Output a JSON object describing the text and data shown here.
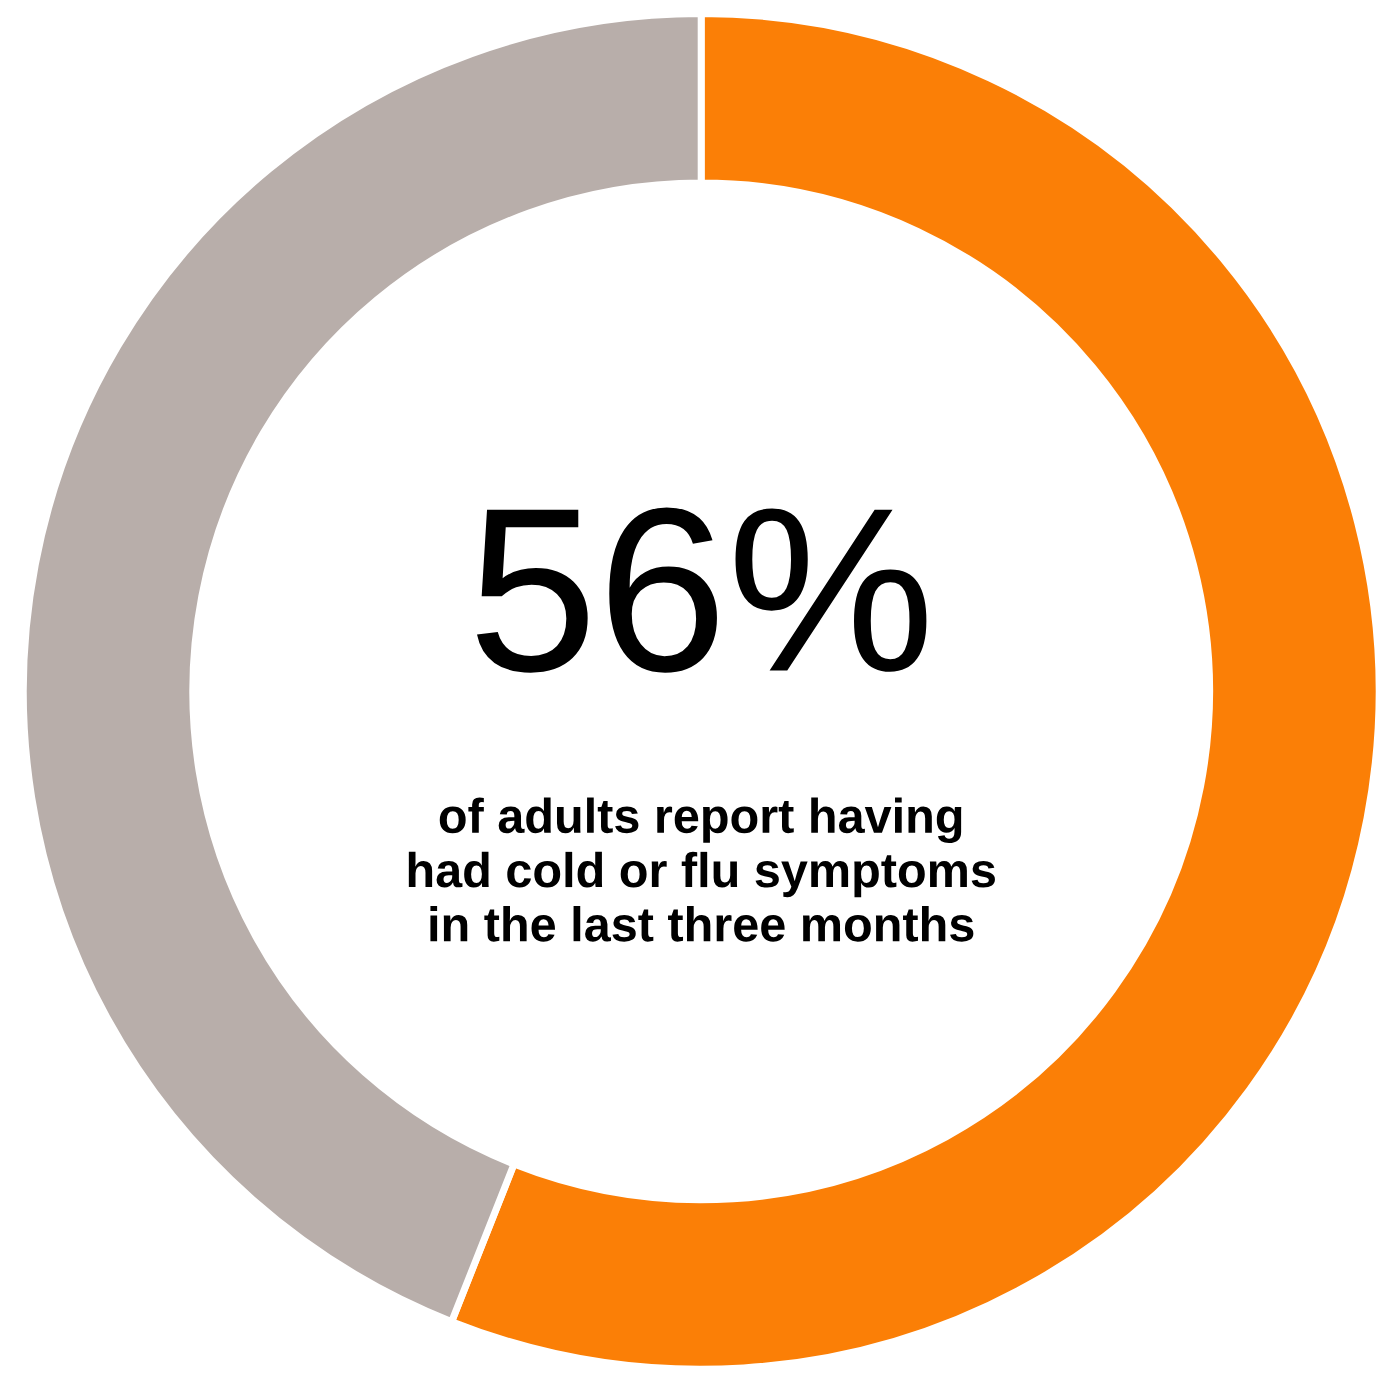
{
  "chart_data": {
    "type": "donut",
    "categories": [
      null,
      null
    ],
    "values": [
      56,
      44
    ],
    "colors": [
      "#fb7f06",
      "#b8aeaa"
    ],
    "annotations": [
      "56%",
      "of adults report having\nhad cold or flu symptoms\nin the last three months"
    ]
  }
}
